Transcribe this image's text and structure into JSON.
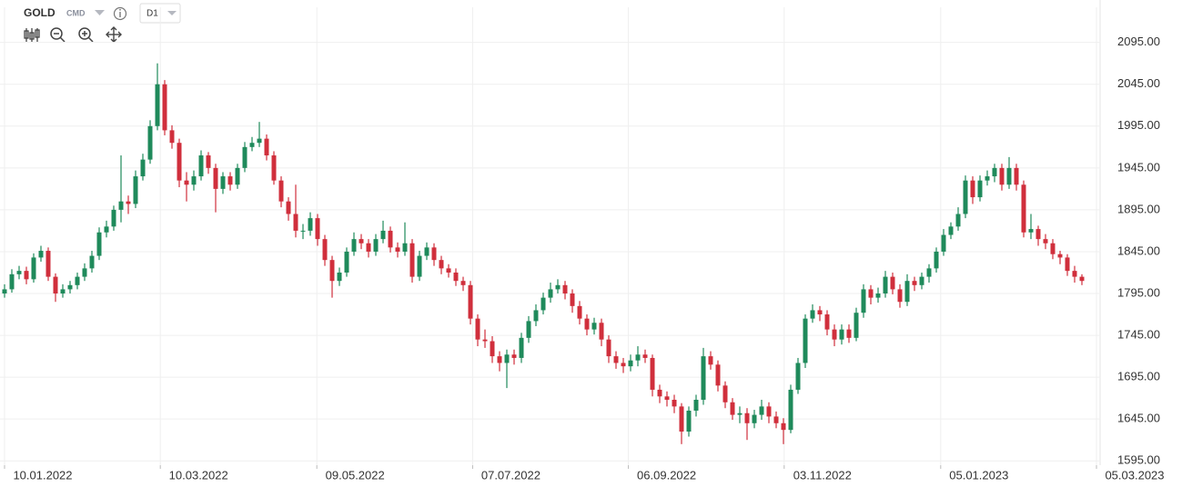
{
  "toolbar": {
    "symbol": "GOLD",
    "market": "CMD",
    "timeframe": "D1"
  },
  "chart_data": {
    "type": "candlestick",
    "up_color": "#1f8a5b",
    "down_color": "#d02f3c",
    "grid": true,
    "xlim": [
      0,
      150
    ],
    "xticks": [
      {
        "value": 0,
        "label": "10.01.2022"
      },
      {
        "value": 21.4,
        "label": "10.03.2022"
      },
      {
        "value": 42.9,
        "label": "09.05.2022"
      },
      {
        "value": 64.3,
        "label": "07.07.2022"
      },
      {
        "value": 85.7,
        "label": "06.09.2022"
      },
      {
        "value": 107.1,
        "label": "03.11.2022"
      },
      {
        "value": 128.6,
        "label": "05.01.2023"
      },
      {
        "value": 150,
        "label": "05.03.2023"
      }
    ],
    "ylim": [
      1592,
      2137
    ],
    "yticks": [
      {
        "value": 1595,
        "label": "1595.00"
      },
      {
        "value": 1645,
        "label": "1645.00"
      },
      {
        "value": 1695,
        "label": "1695.00"
      },
      {
        "value": 1745,
        "label": "1745.00"
      },
      {
        "value": 1795,
        "label": "1795.00"
      },
      {
        "value": 1845,
        "label": "1845.00"
      },
      {
        "value": 1895,
        "label": "1895.00"
      },
      {
        "value": 1945,
        "label": "1945.00"
      },
      {
        "value": 1995,
        "label": "1995.00"
      },
      {
        "value": 2045,
        "label": "2045.00"
      },
      {
        "value": 2095,
        "label": "2095.00"
      }
    ],
    "open": [
      1795,
      1800,
      1818,
      1822,
      1812,
      1838,
      1846,
      1815,
      1795,
      1800,
      1805,
      1815,
      1825,
      1840,
      1868,
      1875,
      1895,
      1905,
      1902,
      1935,
      1955,
      1995,
      2045,
      1990,
      1975,
      1930,
      1925,
      1935,
      1960,
      1945,
      1920,
      1935,
      1925,
      1945,
      1970,
      1975,
      1980,
      1960,
      1930,
      1905,
      1890,
      1870,
      1870,
      1885,
      1860,
      1835,
      1810,
      1820,
      1845,
      1860,
      1855,
      1845,
      1860,
      1870,
      1850,
      1845,
      1855,
      1815,
      1840,
      1850,
      1835,
      1825,
      1820,
      1810,
      1805,
      1765,
      1740,
      1738,
      1720,
      1712,
      1722,
      1718,
      1742,
      1762,
      1775,
      1790,
      1800,
      1805,
      1795,
      1780,
      1765,
      1752,
      1760,
      1740,
      1720,
      1712,
      1708,
      1715,
      1722,
      1718,
      1680,
      1672,
      1668,
      1660,
      1630,
      1655,
      1668,
      1720,
      1710,
      1685,
      1665,
      1650,
      1652,
      1640,
      1650,
      1660,
      1648,
      1640,
      1632,
      1680,
      1712,
      1765,
      1775,
      1770,
      1752,
      1740,
      1752,
      1742,
      1772,
      1800,
      1790,
      1795,
      1815,
      1800,
      1785,
      1810,
      1805,
      1815,
      1825,
      1845,
      1865,
      1875,
      1890,
      1930,
      1910,
      1930,
      1935,
      1945,
      1925,
      1945,
      1925,
      1868,
      1872,
      1860,
      1855,
      1842,
      1838,
      1822,
      1815
    ],
    "high": [
      1806,
      1824,
      1828,
      1827,
      1843,
      1852,
      1850,
      1819,
      1806,
      1810,
      1820,
      1831,
      1846,
      1874,
      1882,
      1900,
      1960,
      1912,
      1942,
      1962,
      2002,
      2070,
      2050,
      1996,
      1980,
      1940,
      1942,
      1966,
      1964,
      1950,
      1940,
      1940,
      1950,
      1976,
      1982,
      2000,
      1985,
      1965,
      1935,
      1910,
      1925,
      1878,
      1892,
      1890,
      1865,
      1840,
      1826,
      1850,
      1868,
      1866,
      1860,
      1866,
      1882,
      1875,
      1856,
      1880,
      1860,
      1846,
      1856,
      1855,
      1840,
      1830,
      1825,
      1815,
      1810,
      1770,
      1752,
      1744,
      1726,
      1728,
      1728,
      1748,
      1768,
      1782,
      1796,
      1808,
      1812,
      1810,
      1800,
      1786,
      1770,
      1766,
      1765,
      1745,
      1726,
      1718,
      1722,
      1732,
      1728,
      1722,
      1686,
      1678,
      1674,
      1664,
      1660,
      1674,
      1730,
      1726,
      1715,
      1690,
      1670,
      1660,
      1658,
      1656,
      1668,
      1665,
      1654,
      1646,
      1686,
      1718,
      1770,
      1782,
      1780,
      1775,
      1758,
      1758,
      1758,
      1778,
      1806,
      1805,
      1802,
      1822,
      1820,
      1806,
      1818,
      1815,
      1820,
      1830,
      1850,
      1872,
      1880,
      1898,
      1936,
      1935,
      1936,
      1942,
      1950,
      1950,
      1958,
      1950,
      1930,
      1890,
      1876,
      1866,
      1860,
      1846,
      1842,
      1828,
      1818
    ],
    "low": [
      1790,
      1796,
      1812,
      1806,
      1808,
      1833,
      1810,
      1785,
      1790,
      1795,
      1800,
      1810,
      1820,
      1835,
      1862,
      1870,
      1880,
      1890,
      1897,
      1930,
      1950,
      1990,
      1984,
      1968,
      1922,
      1905,
      1918,
      1930,
      1938,
      1892,
      1914,
      1918,
      1920,
      1940,
      1965,
      1970,
      1954,
      1925,
      1898,
      1882,
      1862,
      1860,
      1864,
      1852,
      1828,
      1790,
      1804,
      1815,
      1840,
      1848,
      1838,
      1840,
      1855,
      1844,
      1838,
      1840,
      1808,
      1810,
      1835,
      1828,
      1818,
      1814,
      1804,
      1798,
      1758,
      1732,
      1730,
      1712,
      1702,
      1682,
      1710,
      1712,
      1736,
      1756,
      1770,
      1784,
      1795,
      1788,
      1772,
      1758,
      1745,
      1746,
      1732,
      1712,
      1705,
      1700,
      1702,
      1708,
      1712,
      1672,
      1664,
      1660,
      1652,
      1615,
      1624,
      1648,
      1662,
      1704,
      1678,
      1658,
      1644,
      1640,
      1620,
      1634,
      1644,
      1640,
      1634,
      1615,
      1628,
      1675,
      1706,
      1760,
      1762,
      1745,
      1732,
      1734,
      1736,
      1738,
      1766,
      1782,
      1784,
      1790,
      1794,
      1778,
      1780,
      1798,
      1800,
      1808,
      1820,
      1840,
      1860,
      1870,
      1885,
      1902,
      1905,
      1924,
      1928,
      1918,
      1920,
      1918,
      1862,
      1860,
      1852,
      1848,
      1836,
      1830,
      1816,
      1808,
      1805
    ],
    "close": [
      1800,
      1818,
      1822,
      1812,
      1838,
      1846,
      1815,
      1795,
      1800,
      1805,
      1815,
      1825,
      1840,
      1868,
      1875,
      1895,
      1905,
      1902,
      1935,
      1955,
      1995,
      2045,
      1990,
      1975,
      1930,
      1925,
      1935,
      1960,
      1945,
      1920,
      1935,
      1925,
      1945,
      1970,
      1975,
      1980,
      1960,
      1930,
      1905,
      1890,
      1870,
      1870,
      1885,
      1860,
      1835,
      1810,
      1820,
      1845,
      1860,
      1855,
      1845,
      1860,
      1870,
      1850,
      1845,
      1855,
      1815,
      1840,
      1850,
      1835,
      1825,
      1820,
      1810,
      1805,
      1765,
      1740,
      1738,
      1720,
      1712,
      1722,
      1718,
      1742,
      1762,
      1775,
      1790,
      1800,
      1805,
      1795,
      1780,
      1765,
      1752,
      1760,
      1740,
      1720,
      1712,
      1708,
      1715,
      1722,
      1718,
      1680,
      1672,
      1668,
      1660,
      1630,
      1655,
      1668,
      1720,
      1710,
      1685,
      1665,
      1650,
      1652,
      1640,
      1650,
      1660,
      1648,
      1640,
      1632,
      1680,
      1712,
      1765,
      1775,
      1770,
      1752,
      1740,
      1752,
      1742,
      1772,
      1800,
      1790,
      1795,
      1815,
      1800,
      1785,
      1810,
      1805,
      1815,
      1825,
      1845,
      1865,
      1875,
      1890,
      1930,
      1910,
      1930,
      1935,
      1945,
      1925,
      1945,
      1925,
      1868,
      1872,
      1860,
      1855,
      1842,
      1838,
      1822,
      1815,
      1810
    ]
  }
}
